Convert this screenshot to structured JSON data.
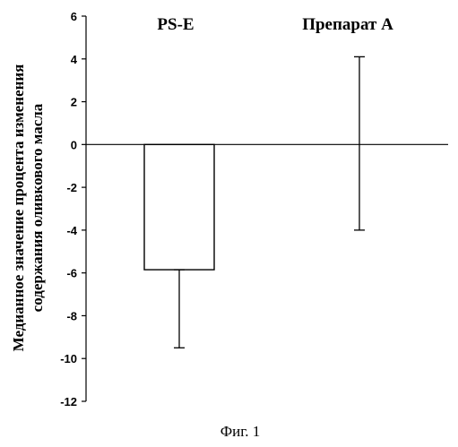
{
  "chart_data": {
    "type": "bar",
    "categories": [
      "PS-E",
      "Препарат A"
    ],
    "values": [
      -5.85,
      0
    ],
    "error_low": [
      -9.5,
      -4.0
    ],
    "error_high": [
      -5.85,
      4.1
    ],
    "ylabel_lines": [
      "Медианное значение процента изменения",
      "содержания оливкового масла"
    ],
    "ylim": [
      -12,
      6
    ],
    "yticks": [
      6,
      4,
      2,
      0,
      -2,
      -4,
      -6,
      -8,
      -10,
      -12
    ],
    "grid": false,
    "caption": "Фиг. 1"
  }
}
